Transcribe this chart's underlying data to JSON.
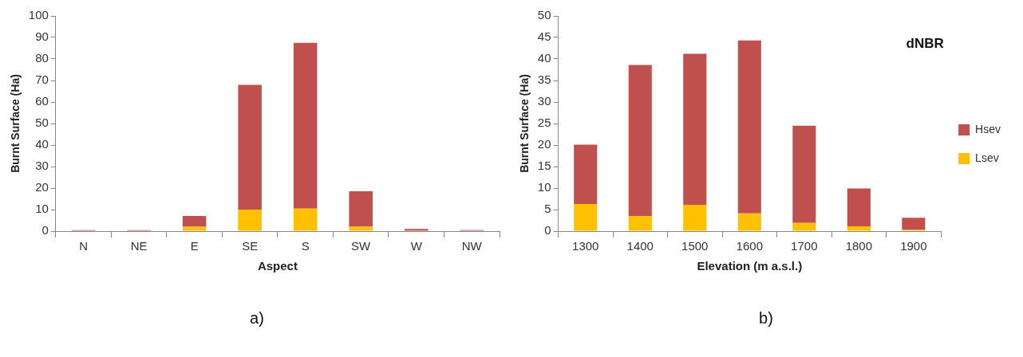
{
  "chart_data": [
    {
      "type": "bar",
      "stacked": true,
      "xlabel": "Aspect",
      "ylabel": "Burnt Surface (Ha)",
      "categories": [
        "N",
        "NE",
        "E",
        "SE",
        "S",
        "SW",
        "W",
        "NW"
      ],
      "series": [
        {
          "color": "#ffc000",
          "values": [
            0,
            0,
            2,
            10,
            10.5,
            2,
            0,
            0
          ]
        },
        {
          "color": "#c0504d",
          "values": [
            0.5,
            0.5,
            5,
            58,
            77,
            16.5,
            1,
            0.5
          ]
        }
      ],
      "ylim": [
        0,
        100
      ],
      "yticks": [
        0,
        10,
        20,
        30,
        40,
        50,
        60,
        70,
        80,
        90,
        100
      ],
      "grid": false,
      "legend": false,
      "annotations": [
        "a)"
      ]
    },
    {
      "type": "bar",
      "stacked": true,
      "title": "dNBR",
      "xlabel": "Elevation (m a.s.l.)",
      "ylabel": "Burnt Surface (Ha)",
      "categories": [
        "1300",
        "1400",
        "1500",
        "1600",
        "1700",
        "1800",
        "1900"
      ],
      "series": [
        {
          "name": "Lsev",
          "color": "#ffc000",
          "values": [
            6.3,
            3.5,
            6.1,
            4.1,
            1.9,
            1.1,
            0.3
          ]
        },
        {
          "name": "Hsev",
          "color": "#c0504d",
          "values": [
            13.8,
            35.1,
            35.1,
            40.2,
            22.6,
            8.8,
            2.8
          ]
        }
      ],
      "ylim": [
        0,
        50
      ],
      "yticks": [
        0,
        5,
        10,
        15,
        20,
        25,
        30,
        35,
        40,
        45,
        50
      ],
      "grid": false,
      "legend": "right",
      "annotations": [
        "b)"
      ]
    }
  ]
}
